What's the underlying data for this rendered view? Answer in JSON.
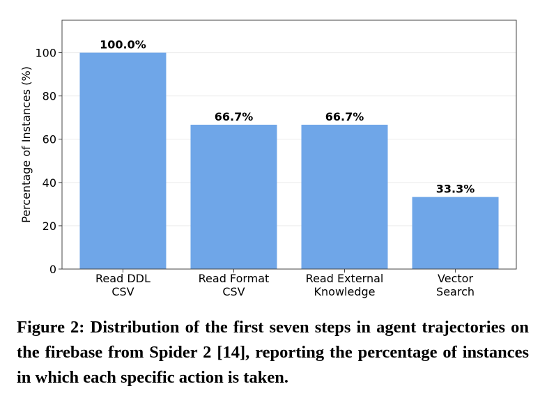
{
  "chart_data": {
    "type": "bar",
    "categories": [
      [
        "Read DDL",
        "CSV"
      ],
      [
        "Read Format",
        "CSV"
      ],
      [
        "Read External",
        "Knowledge"
      ],
      [
        "Vector",
        "Search"
      ]
    ],
    "values": [
      100.0,
      66.7,
      66.7,
      33.3
    ],
    "data_labels": [
      "100.0%",
      "66.7%",
      "66.7%",
      "33.3%"
    ],
    "title": "",
    "xlabel": "",
    "ylabel": "Percentage of Instances (%)",
    "ylim": [
      0,
      115
    ],
    "yticks": [
      0,
      20,
      40,
      60,
      80,
      100
    ],
    "grid": true,
    "bar_color": "#6fa6e8"
  },
  "caption": "Figure 2: Distribution of the first seven steps in agent trajectories on the firebase from Spider 2 [14], reporting the percentage of instances in which each specific action is taken."
}
